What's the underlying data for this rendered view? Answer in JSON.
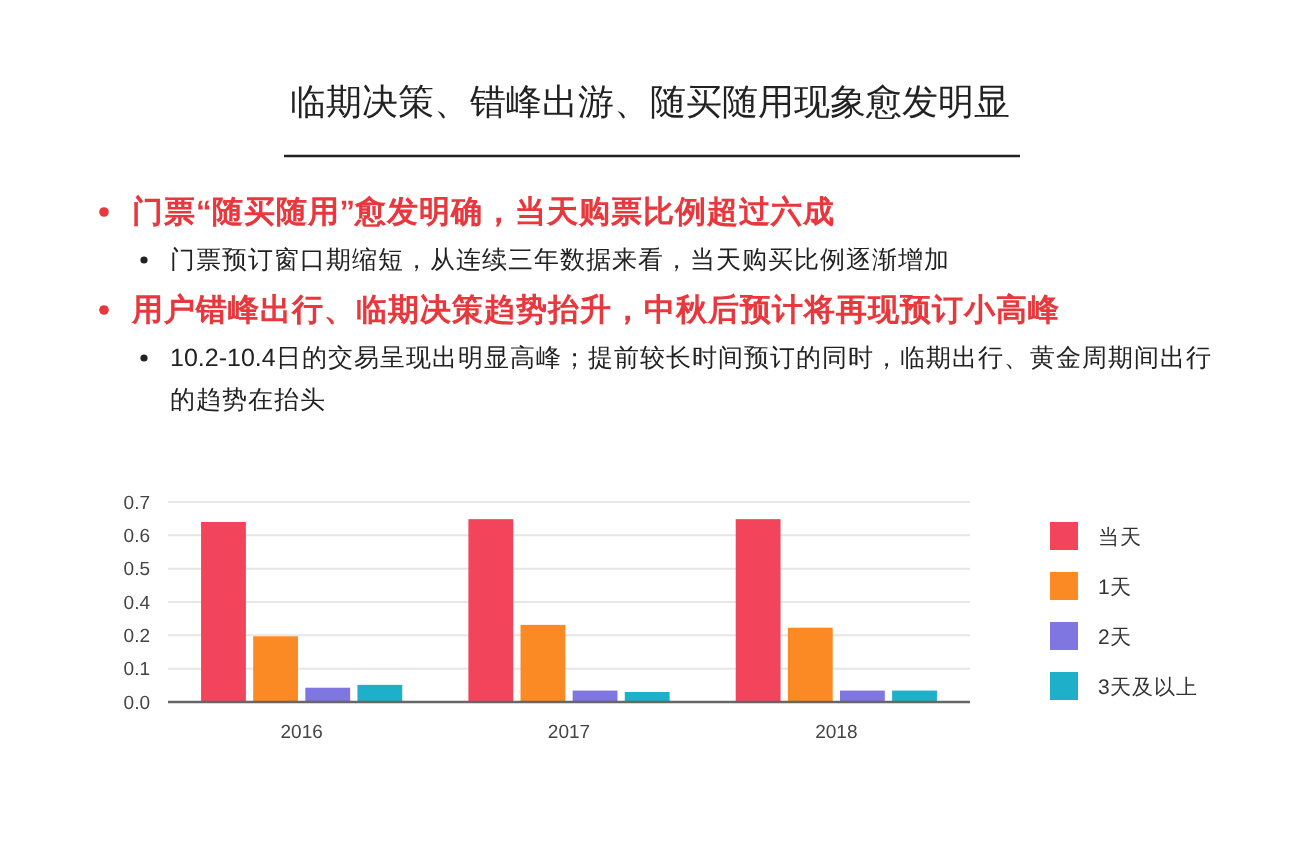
{
  "chart_data": {
    "type": "bar",
    "title": "临期决策、错峰出游、随买随用现象愈发明显",
    "annotations": [
      "门票“随买随用”愈发明确，当天购票比例超过六成",
      "门票预订窗口期缩短，从连续三年数据来看，当天购买比例逐渐增加",
      "用户错峰出行、临期决策趋势抬升，中秋后预计将再现预订小高峰",
      "10.2-10.4日的交易呈现出明显高峰；提前较长时间预订的同时，临期出行、黄金周期间出行的趋势在抬头"
    ],
    "categories": [
      "2016",
      "2017",
      "2018"
    ],
    "series": [
      {
        "name": "当天",
        "color": "#f2455c",
        "values": [
          0.63,
          0.64,
          0.64
        ]
      },
      {
        "name": "1天",
        "color": "#fb8a24",
        "values": [
          0.23,
          0.27,
          0.26
        ]
      },
      {
        "name": "2天",
        "color": "#7f76e2",
        "values": [
          0.05,
          0.04,
          0.04
        ]
      },
      {
        "name": "3天及以上",
        "color": "#1fb0c9",
        "values": [
          0.06,
          0.035,
          0.04
        ]
      }
    ],
    "ylim": [
      0,
      0.7
    ],
    "yticks": [
      {
        "value": 0,
        "label": "0.0"
      },
      {
        "value": 0.11667,
        "label": "0.1"
      },
      {
        "value": 0.23333,
        "label": "0.2"
      },
      {
        "value": 0.35,
        "label": "0.4"
      },
      {
        "value": 0.46667,
        "label": "0.5"
      },
      {
        "value": 0.58333,
        "label": "0.6"
      },
      {
        "value": 0.7,
        "label": "0.7"
      }
    ],
    "grid": "y",
    "legend": "right"
  }
}
